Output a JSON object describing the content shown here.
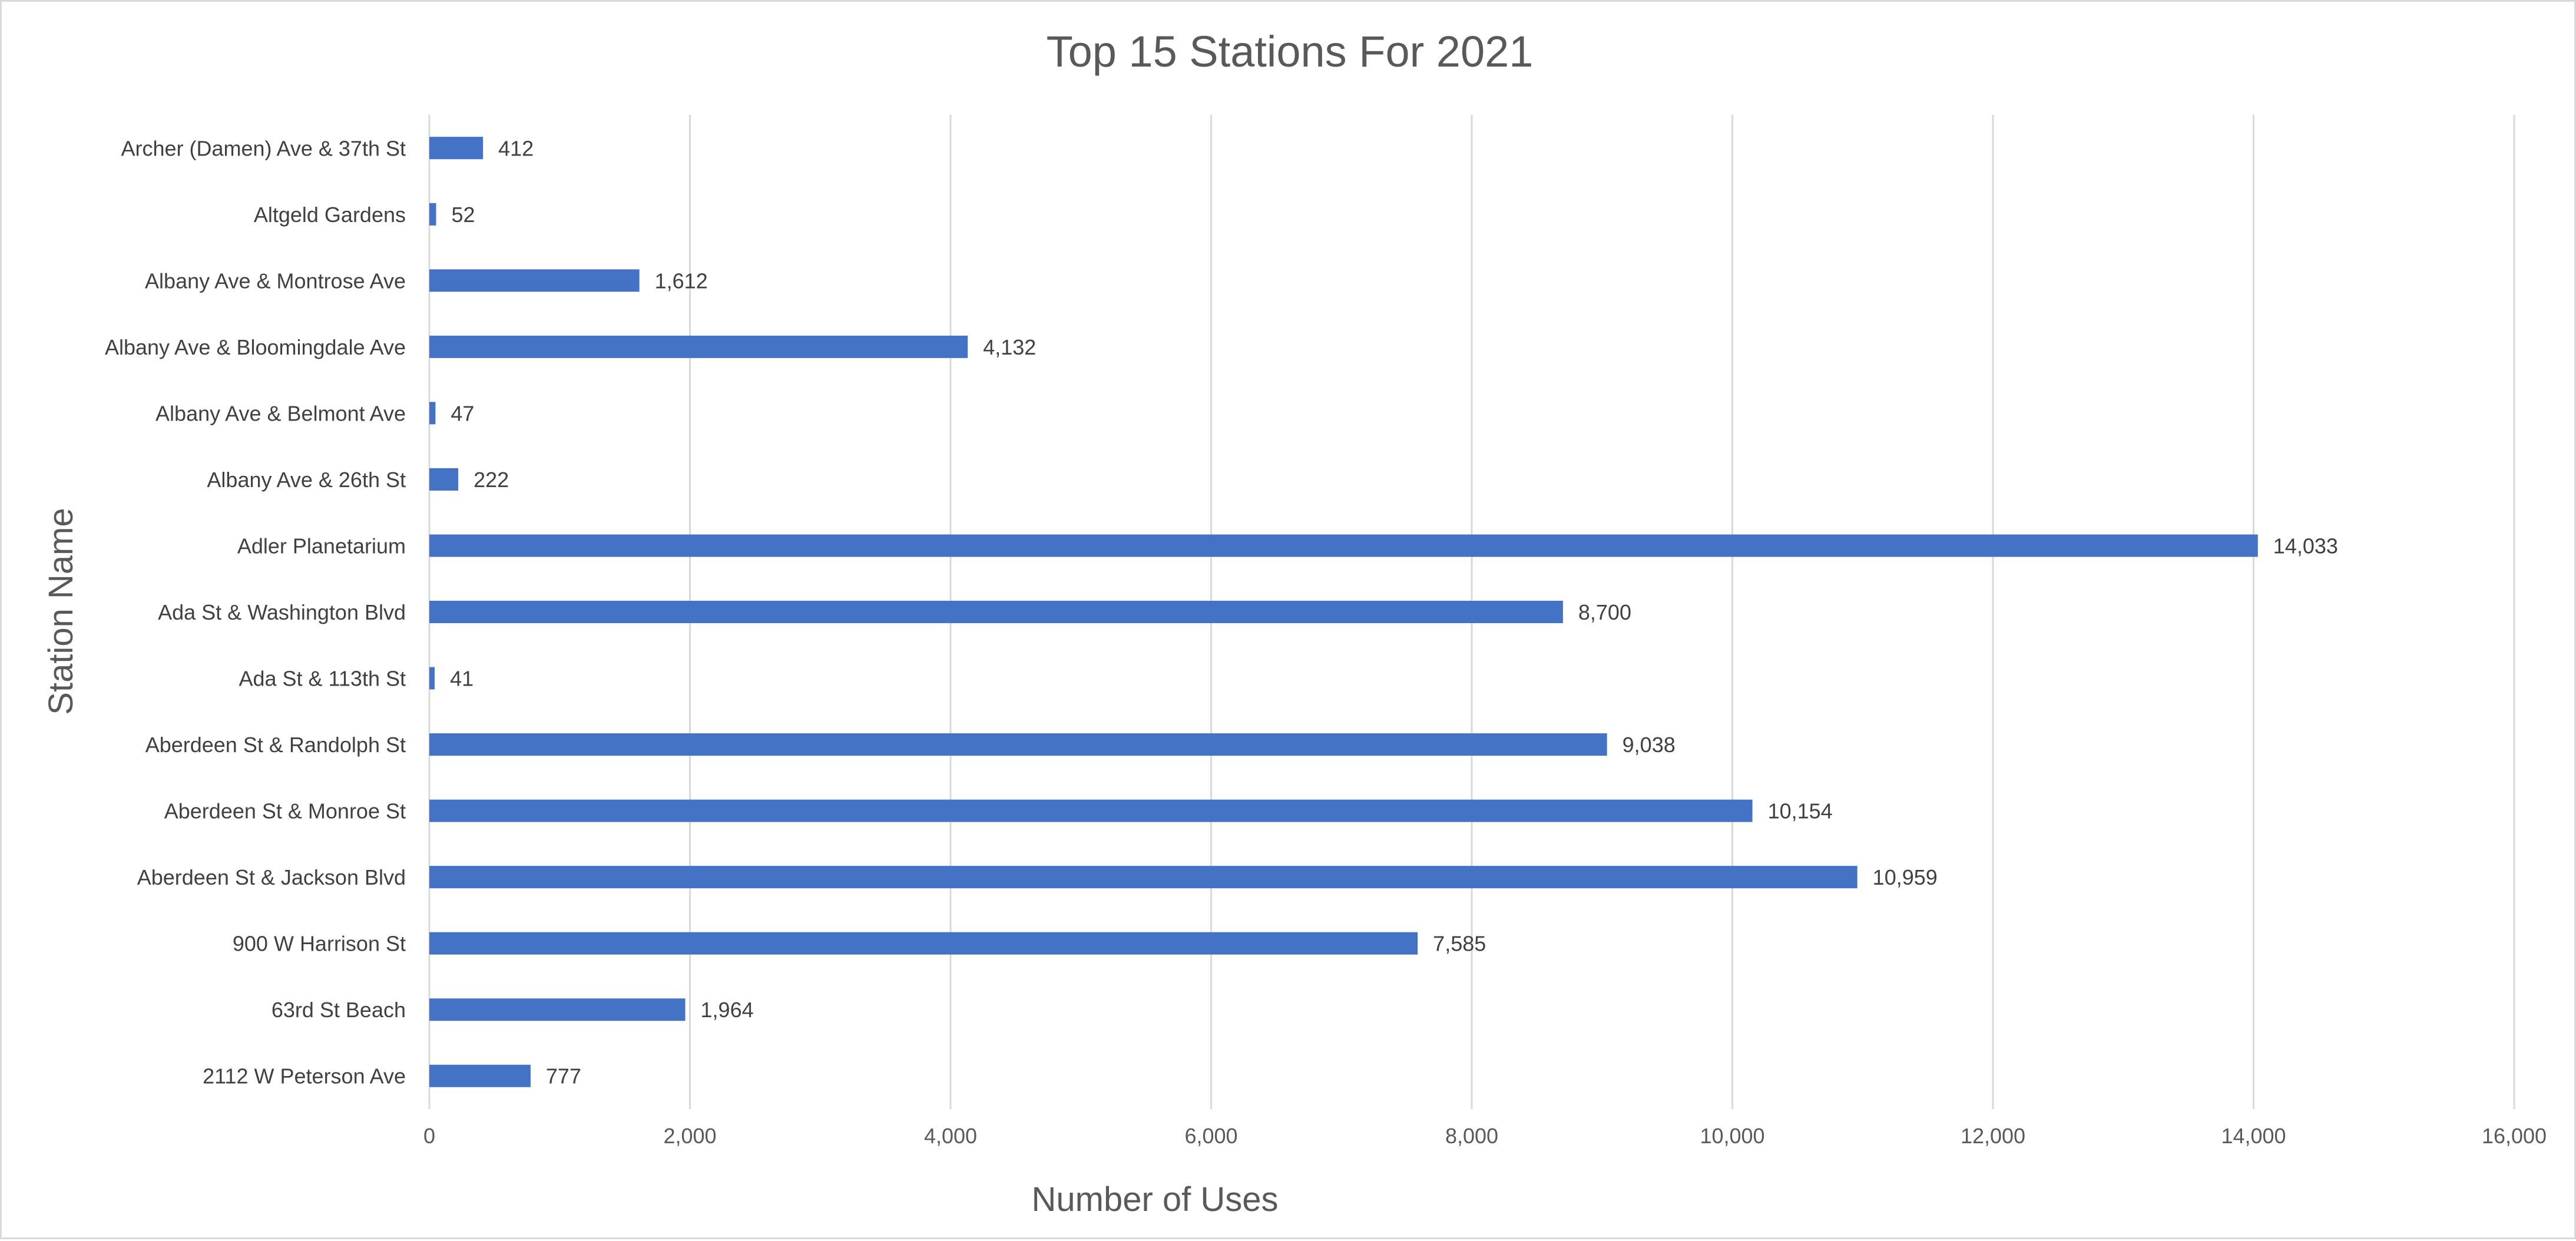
{
  "chart_data": {
    "type": "bar",
    "orientation": "horizontal",
    "title": "Top 15 Stations For 2021",
    "xlabel": "Number of Uses",
    "ylabel": "Station Name",
    "xlim": [
      0,
      16000
    ],
    "x_ticks": [
      0,
      2000,
      4000,
      6000,
      8000,
      10000,
      12000,
      14000,
      16000
    ],
    "x_tick_labels": [
      "0",
      "2,000",
      "4,000",
      "6,000",
      "8,000",
      "10,000",
      "12,000",
      "14,000",
      "16,000"
    ],
    "grid": "vertical",
    "legend": "none",
    "bar_color": "#4472C4",
    "categories": [
      "Archer (Damen) Ave & 37th St",
      "Altgeld Gardens",
      "Albany Ave & Montrose Ave",
      "Albany Ave & Bloomingdale Ave",
      "Albany Ave & Belmont Ave",
      "Albany Ave & 26th St",
      "Adler Planetarium",
      "Ada St & Washington Blvd",
      "Ada St & 113th St",
      "Aberdeen St & Randolph St",
      "Aberdeen St & Monroe St",
      "Aberdeen St & Jackson Blvd",
      "900 W Harrison St",
      "63rd St Beach",
      "2112 W Peterson Ave"
    ],
    "values": [
      412,
      52,
      1612,
      4132,
      47,
      222,
      14033,
      8700,
      41,
      9038,
      10154,
      10959,
      7585,
      1964,
      777
    ],
    "data_labels": [
      "412",
      "52",
      "1,612",
      "4,132",
      "47",
      "222",
      "14,033",
      "8,700",
      "41",
      "9,038",
      "10,154",
      "10,959",
      "7,585",
      "1,964",
      "777"
    ]
  }
}
